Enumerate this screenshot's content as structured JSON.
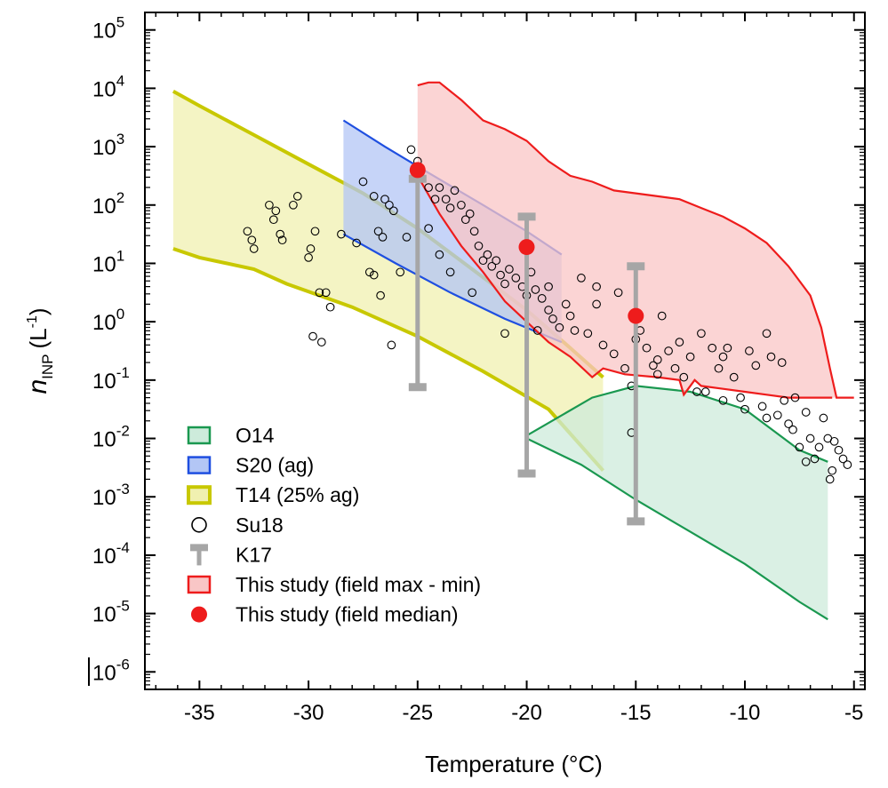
{
  "chart_data": {
    "type": "scatter",
    "xlabel": "Temperature (°C)",
    "ylabel": {
      "main": "n",
      "sub": "INP",
      "unit_open": "(L",
      "unit_exp": "-1",
      "unit_close": ")"
    },
    "xlim": [
      -37.5,
      -4.5
    ],
    "ylim_log10": [
      -6.3,
      5.3
    ],
    "y_scale": "log",
    "x_ticks": [
      -35,
      -30,
      -25,
      -20,
      -15,
      -10,
      -5
    ],
    "y_ticks_exponents": [
      -6,
      -5,
      -4,
      -3,
      -2,
      -1,
      0,
      1,
      2,
      3,
      4,
      5
    ],
    "y_tick_base": "10",
    "legend_position": "bottom-left",
    "legend": [
      {
        "key": "O14",
        "label": "O14",
        "color": "#1a9850",
        "symbol": "box"
      },
      {
        "key": "S20",
        "label": "S20 (ag)",
        "color": "#1f4fe0",
        "symbol": "box"
      },
      {
        "key": "T14",
        "label": "T14 (25% ag)",
        "color": "#c8c800",
        "symbol": "box"
      },
      {
        "key": "Su18",
        "label": "Su18",
        "color": "#000000",
        "symbol": "open-circle"
      },
      {
        "key": "K17",
        "label": "K17",
        "color": "#a6a6a6",
        "symbol": "errorbar"
      },
      {
        "key": "range",
        "label": "This study (field max - min)",
        "color": "#ee1c1c",
        "symbol": "box"
      },
      {
        "key": "median",
        "label": "This study (field median)",
        "color": "#ee1c1c",
        "symbol": "filled-circle"
      }
    ],
    "series": [
      {
        "name": "T14 (25% ag)",
        "kind": "band",
        "fill": "#f0f0b0",
        "stroke": "#c8c800",
        "upper": [
          [
            -36.2,
            3.95
          ],
          [
            -35,
            3.7
          ],
          [
            -32.5,
            3.2
          ],
          [
            -30,
            2.7
          ],
          [
            -27.5,
            2.2
          ],
          [
            -25,
            1.6
          ],
          [
            -22.5,
            0.9
          ],
          [
            -20,
            0.2
          ],
          [
            -18,
            -0.45
          ],
          [
            -16.5,
            -0.95
          ]
        ],
        "lower": [
          [
            -36.2,
            1.25
          ],
          [
            -35,
            1.1
          ],
          [
            -32.5,
            0.9
          ],
          [
            -31,
            0.65
          ],
          [
            -28,
            0.25
          ],
          [
            -25,
            -0.25
          ],
          [
            -22,
            -0.85
          ],
          [
            -19,
            -1.5
          ],
          [
            -16.5,
            -2.55
          ]
        ]
      },
      {
        "name": "O14",
        "kind": "band",
        "fill": "#cdebdb",
        "stroke": "#1a9850",
        "upper": [
          [
            -20,
            -1.95
          ],
          [
            -17,
            -1.3
          ],
          [
            -15,
            -1.1
          ],
          [
            -12.5,
            -1.2
          ],
          [
            -10,
            -1.5
          ],
          [
            -7.5,
            -2.2
          ],
          [
            -6.2,
            -2.4
          ]
        ],
        "lower": [
          [
            -20,
            -2.0
          ],
          [
            -17.5,
            -2.45
          ],
          [
            -15,
            -3.05
          ],
          [
            -12.5,
            -3.6
          ],
          [
            -10,
            -4.15
          ],
          [
            -7.5,
            -4.8
          ],
          [
            -6.2,
            -5.1
          ]
        ]
      },
      {
        "name": "S20 (ag)",
        "kind": "band",
        "fill": "#b3c6f5",
        "stroke": "#1f4fe0",
        "upper": [
          [
            -28.4,
            3.45
          ],
          [
            -26.5,
            3.0
          ],
          [
            -24.5,
            2.55
          ],
          [
            -22,
            2.0
          ],
          [
            -20,
            1.55
          ],
          [
            -18.4,
            1.15
          ]
        ],
        "lower": [
          [
            -28.4,
            1.5
          ],
          [
            -26,
            1.0
          ],
          [
            -23.5,
            0.5
          ],
          [
            -21,
            0.05
          ],
          [
            -18.4,
            -0.35
          ]
        ]
      },
      {
        "name": "This study (field max - min)",
        "kind": "band",
        "fill": "#f9c6c6",
        "stroke": "#ee1c1c",
        "upper": [
          [
            -25,
            4.05
          ],
          [
            -24.5,
            4.1
          ],
          [
            -24,
            4.1
          ],
          [
            -23,
            3.8
          ],
          [
            -22,
            3.45
          ],
          [
            -21,
            3.3
          ],
          [
            -20,
            3.1
          ],
          [
            -19,
            2.75
          ],
          [
            -18,
            2.5
          ],
          [
            -17,
            2.4
          ],
          [
            -16,
            2.25
          ],
          [
            -15,
            2.2
          ],
          [
            -14,
            2.15
          ],
          [
            -13,
            2.1
          ],
          [
            -12,
            1.95
          ],
          [
            -11,
            1.8
          ],
          [
            -10,
            1.6
          ],
          [
            -9,
            1.35
          ],
          [
            -8,
            0.95
          ],
          [
            -7,
            0.45
          ],
          [
            -6.5,
            -0.1
          ],
          [
            -6.1,
            -0.8
          ],
          [
            -5.8,
            -1.3
          ],
          [
            -5,
            -1.3
          ]
        ],
        "lower": [
          [
            -25,
            2.5
          ],
          [
            -24,
            1.85
          ],
          [
            -23,
            1.3
          ],
          [
            -22,
            0.85
          ],
          [
            -21,
            0.35
          ],
          [
            -20,
            0.0
          ],
          [
            -19,
            -0.35
          ],
          [
            -18,
            -0.6
          ],
          [
            -17,
            -0.95
          ],
          [
            -16.5,
            -0.8
          ],
          [
            -15.5,
            -0.9
          ],
          [
            -14,
            -0.95
          ],
          [
            -13,
            -1.0
          ],
          [
            -12.8,
            -1.25
          ],
          [
            -12.6,
            -1.15
          ],
          [
            -12.3,
            -1.0
          ],
          [
            -12,
            -1.1
          ],
          [
            -11,
            -1.15
          ],
          [
            -10,
            -1.2
          ],
          [
            -9,
            -1.25
          ],
          [
            -8,
            -1.3
          ],
          [
            -7,
            -1.3
          ],
          [
            -6,
            -1.3
          ]
        ]
      },
      {
        "name": "Su18",
        "kind": "points",
        "points": [
          [
            -32.8,
            1.55
          ],
          [
            -32.6,
            1.4
          ],
          [
            -32.5,
            1.25
          ],
          [
            -31.8,
            2.0
          ],
          [
            -31.6,
            1.75
          ],
          [
            -31.5,
            1.9
          ],
          [
            -31.3,
            1.5
          ],
          [
            -31.2,
            1.4
          ],
          [
            -30.7,
            2.0
          ],
          [
            -30.5,
            2.15
          ],
          [
            -30,
            1.1
          ],
          [
            -29.9,
            1.25
          ],
          [
            -29.7,
            1.55
          ],
          [
            -29.5,
            0.5
          ],
          [
            -29.2,
            0.5
          ],
          [
            -29.0,
            0.25
          ],
          [
            -29.8,
            -0.25
          ],
          [
            -29.4,
            -0.35
          ],
          [
            -28.5,
            1.5
          ],
          [
            -27.8,
            1.35
          ],
          [
            -27.5,
            2.4
          ],
          [
            -27.2,
            0.85
          ],
          [
            -27.0,
            2.15
          ],
          [
            -26.8,
            1.55
          ],
          [
            -26.6,
            1.45
          ],
          [
            -26.7,
            0.45
          ],
          [
            -27.0,
            0.8
          ],
          [
            -26.5,
            2.1
          ],
          [
            -26.3,
            2.0
          ],
          [
            -26.1,
            1.9
          ],
          [
            -25.8,
            0.85
          ],
          [
            -26.2,
            -0.4
          ],
          [
            -25.3,
            2.95
          ],
          [
            -25.0,
            2.75
          ],
          [
            -24.9,
            2.5
          ],
          [
            -24.5,
            2.3
          ],
          [
            -24.2,
            2.1
          ],
          [
            -24.0,
            2.3
          ],
          [
            -23.7,
            2.1
          ],
          [
            -23.5,
            1.95
          ],
          [
            -23.3,
            2.25
          ],
          [
            -23.0,
            2.0
          ],
          [
            -22.8,
            1.75
          ],
          [
            -22.6,
            1.85
          ],
          [
            -22.4,
            1.55
          ],
          [
            -22.2,
            1.3
          ],
          [
            -22.0,
            1.05
          ],
          [
            -21.8,
            1.15
          ],
          [
            -21.6,
            0.95
          ],
          [
            -21.4,
            1.05
          ],
          [
            -21.2,
            0.8
          ],
          [
            -21.0,
            0.65
          ],
          [
            -20.8,
            0.9
          ],
          [
            -20.5,
            0.75
          ],
          [
            -20.2,
            0.6
          ],
          [
            -20.0,
            0.45
          ],
          [
            -19.8,
            0.85
          ],
          [
            -19.6,
            0.55
          ],
          [
            -19.3,
            0.4
          ],
          [
            -19.0,
            0.2
          ],
          [
            -18.8,
            0.05
          ],
          [
            -18.5,
            -0.1
          ],
          [
            -18.2,
            0.3
          ],
          [
            -18.0,
            0.1
          ],
          [
            -17.8,
            -0.15
          ],
          [
            -17.5,
            0.75
          ],
          [
            -17.2,
            -0.2
          ],
          [
            -16.8,
            0.6
          ],
          [
            -16.5,
            -0.4
          ],
          [
            -16.0,
            -0.55
          ],
          [
            -15.8,
            0.5
          ],
          [
            -15.5,
            -0.8
          ],
          [
            -15.2,
            -1.1
          ],
          [
            -15.0,
            -0.3
          ],
          [
            -14.8,
            -0.15
          ],
          [
            -14.5,
            -0.45
          ],
          [
            -14.2,
            -0.75
          ],
          [
            -14.0,
            -0.9
          ],
          [
            -13.8,
            0.1
          ],
          [
            -13.5,
            -0.5
          ],
          [
            -13.2,
            -0.8
          ],
          [
            -13.0,
            -0.35
          ],
          [
            -12.8,
            -0.95
          ],
          [
            -12.5,
            -0.6
          ],
          [
            -12.2,
            -1.2
          ],
          [
            -12.0,
            -0.2
          ],
          [
            -11.8,
            -1.2
          ],
          [
            -11.5,
            -0.45
          ],
          [
            -11.2,
            -0.8
          ],
          [
            -11.0,
            -1.35
          ],
          [
            -10.8,
            -0.45
          ],
          [
            -10.5,
            -0.95
          ],
          [
            -10.2,
            -1.3
          ],
          [
            -10.0,
            -1.5
          ],
          [
            -9.8,
            -0.5
          ],
          [
            -9.5,
            -0.75
          ],
          [
            -9.2,
            -1.45
          ],
          [
            -9.0,
            -1.65
          ],
          [
            -8.8,
            -0.6
          ],
          [
            -8.5,
            -1.6
          ],
          [
            -8.2,
            -1.35
          ],
          [
            -8.0,
            -1.75
          ],
          [
            -7.8,
            -1.85
          ],
          [
            -7.5,
            -2.15
          ],
          [
            -7.2,
            -1.55
          ],
          [
            -7.0,
            -2.0
          ],
          [
            -6.8,
            -2.35
          ],
          [
            -6.6,
            -2.15
          ],
          [
            -6.4,
            -1.65
          ],
          [
            -6.2,
            -2.0
          ],
          [
            -6.0,
            -2.55
          ],
          [
            -5.9,
            -2.05
          ],
          [
            -5.7,
            -2.2
          ],
          [
            -5.5,
            -2.35
          ],
          [
            -5.3,
            -2.45
          ],
          [
            -9.0,
            -0.2
          ],
          [
            -8.3,
            -0.7
          ],
          [
            -7.7,
            -1.3
          ],
          [
            -15.2,
            -1.9
          ],
          [
            -22.5,
            0.5
          ],
          [
            -23.5,
            0.85
          ],
          [
            -24.0,
            1.15
          ],
          [
            -24.5,
            1.6
          ],
          [
            -25.5,
            1.45
          ],
          [
            -21.0,
            -0.2
          ],
          [
            -19.5,
            -0.15
          ],
          [
            -19.0,
            0.6
          ],
          [
            -16.8,
            0.3
          ],
          [
            -14.0,
            -0.65
          ],
          [
            -11.0,
            -0.6
          ],
          [
            -7.2,
            -2.4
          ],
          [
            -6.1,
            -2.7
          ]
        ]
      },
      {
        "name": "K17",
        "kind": "errorbars",
        "bars": [
          {
            "x": -25,
            "top": 2.45,
            "bottom": -1.12
          },
          {
            "x": -20,
            "top": 1.8,
            "bottom": -2.6
          },
          {
            "x": -15,
            "top": 0.95,
            "bottom": -3.42
          }
        ]
      },
      {
        "name": "This study (field median)",
        "kind": "points",
        "points": [
          [
            -25,
            2.6
          ],
          [
            -20,
            1.28
          ],
          [
            -15,
            0.1
          ]
        ]
      }
    ]
  }
}
